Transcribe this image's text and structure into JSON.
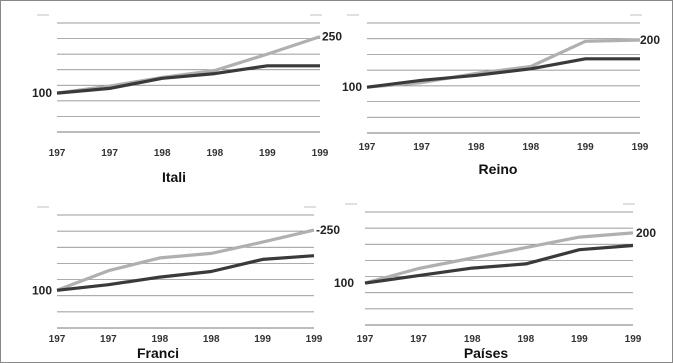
{
  "colors": {
    "series_light": "#b0b0b0",
    "series_dark": "#3a3a3a",
    "grid": "#7a7a7a",
    "frame": "#888888"
  },
  "chart_data": [
    {
      "type": "line",
      "title": "Itali",
      "x": [
        "197",
        "197",
        "198",
        "198",
        "199",
        "199"
      ],
      "series": [
        {
          "values": [
            100,
            118,
            140,
            158,
            200,
            245
          ]
        },
        {
          "values": [
            100,
            112,
            138,
            150,
            170,
            170
          ]
        }
      ],
      "left_label": "100",
      "right_label": "250",
      "ylim": [
        0,
        280
      ]
    },
    {
      "type": "line",
      "title": "Reino",
      "x": [
        "197",
        "197",
        "198",
        "198",
        "199",
        "199"
      ],
      "series": [
        {
          "values": [
            100,
            110,
            130,
            145,
            200,
            203
          ]
        },
        {
          "values": [
            100,
            115,
            126,
            140,
            162,
            162
          ]
        }
      ],
      "left_label": "100",
      "right_label": "200",
      "ylim": [
        0,
        240
      ]
    },
    {
      "type": "line",
      "title": "Franci",
      "x": [
        "197",
        "197",
        "198",
        "198",
        "199",
        "199"
      ],
      "series": [
        {
          "values": [
            100,
            152,
            186,
            198,
            228,
            260
          ]
        },
        {
          "values": [
            100,
            115,
            135,
            150,
            182,
            192
          ]
        }
      ],
      "left_label": "100",
      "right_label": "-250",
      "ylim": [
        0,
        300
      ]
    },
    {
      "type": "line",
      "title": "Países",
      "x": [
        "197",
        "197",
        "198",
        "198",
        "199",
        "199"
      ],
      "series": [
        {
          "values": [
            100,
            135,
            160,
            185,
            210,
            220
          ]
        },
        {
          "values": [
            100,
            118,
            136,
            146,
            180,
            190
          ]
        }
      ],
      "left_label": "100",
      "right_label": "200",
      "ylim": [
        0,
        270
      ]
    }
  ]
}
